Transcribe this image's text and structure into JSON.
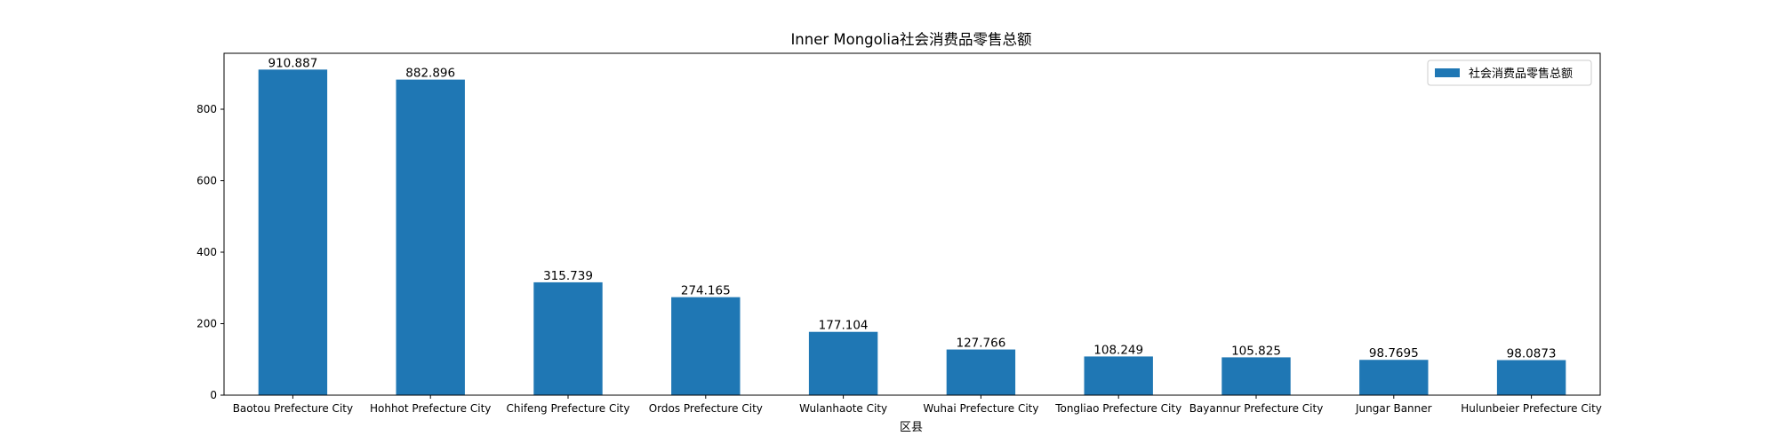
{
  "chart_data": {
    "type": "bar",
    "title": "Inner Mongolia社会消费品零售总额",
    "xlabel": "区县",
    "ylabel": "",
    "categories": [
      "Baotou Prefecture City",
      "Hohhot Prefecture City",
      "Chifeng Prefecture City",
      "Ordos Prefecture City",
      "Wulanhaote City",
      "Wuhai Prefecture City",
      "Tongliao Prefecture City",
      "Bayannur Prefecture City",
      "Jungar Banner",
      "Hulunbeier Prefecture City"
    ],
    "series": [
      {
        "name": "社会消费品零售总额",
        "color": "#1f77b4",
        "values": [
          910.887,
          882.896,
          315.739,
          274.165,
          177.104,
          127.766,
          108.249,
          105.825,
          98.7695,
          98.0873
        ]
      }
    ],
    "value_labels": [
      "910.887",
      "882.896",
      "315.739",
      "274.165",
      "177.104",
      "127.766",
      "108.249",
      "105.825",
      "98.7695",
      "98.0873"
    ],
    "ylim": [
      0,
      956.5
    ],
    "yticks": [
      0,
      200,
      400,
      600,
      800
    ],
    "grid": false,
    "legend_position": "top-right"
  }
}
